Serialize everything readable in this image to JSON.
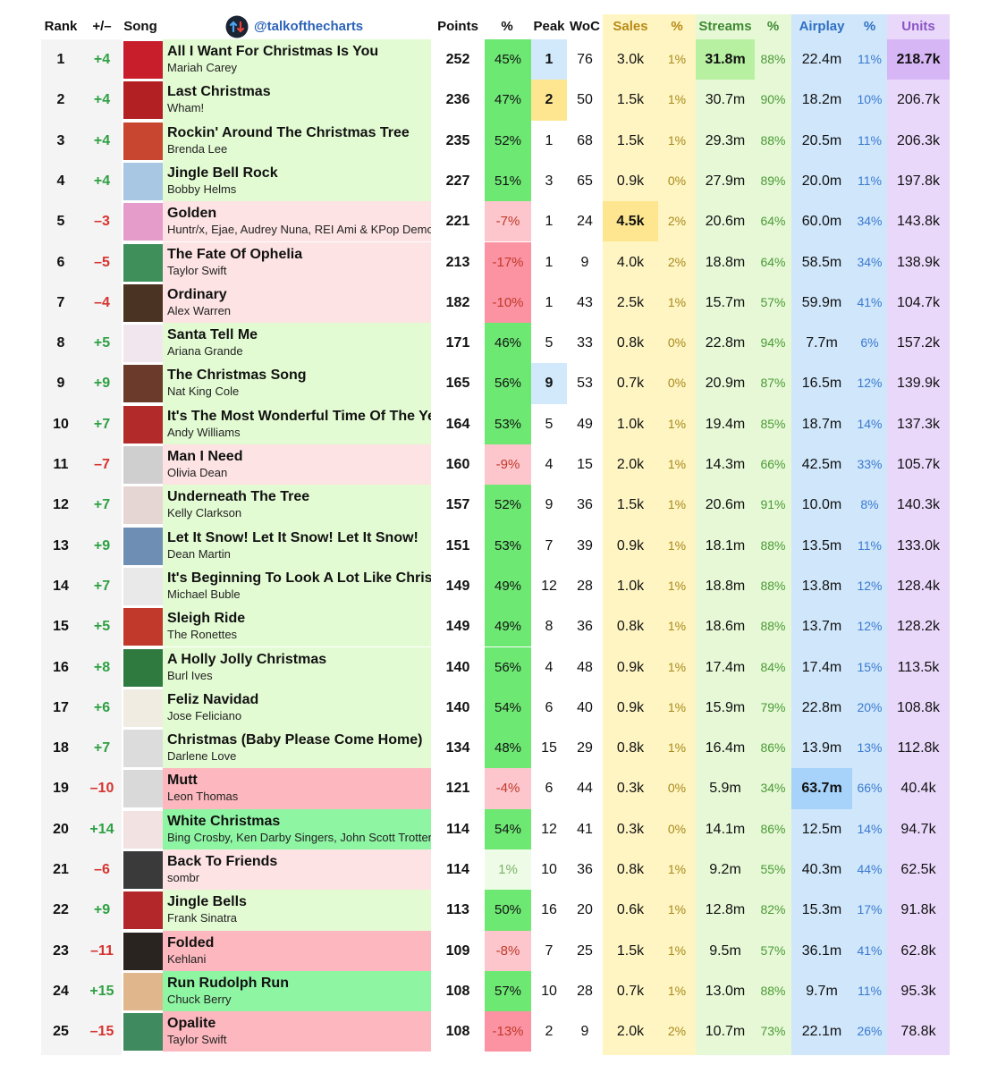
{
  "handle": "@talkofthecharts",
  "headers": {
    "rank": "Rank",
    "change": "+/–",
    "song": "Song",
    "points": "Points",
    "points_pct": "%",
    "peak": "Peak",
    "woc": "WoC",
    "sales": "Sales",
    "sales_pct": "%",
    "streams": "Streams",
    "streams_pct": "%",
    "airplay": "Airplay",
    "airplay_pct": "%",
    "units": "Units"
  },
  "colors": {
    "green_row": "#e3fbd3",
    "light_red_row": "#fde3e3",
    "red_row": "#fcb8be",
    "strong_green_row": "#8ef5a3",
    "pct_pos": "#6de873",
    "pct_neg_light": "#fcc6cc",
    "pct_neg": "#fb93a2",
    "pct_low": "#eefbe6",
    "sales_col": "#fff5c3",
    "streams_col": "#e6f8d6",
    "airplay_col": "#cfe6fb",
    "units_col": "#ead8fb",
    "change_up": "#2ea043",
    "change_down": "#d6332f",
    "sales_pct_text": "#a68a1c",
    "streams_pct_text": "#4a9a36",
    "airplay_pct_text": "#3a7ad0",
    "handle": "#2b63b8"
  },
  "rows": [
    {
      "rank": "1",
      "change": "+4",
      "title": "All I Want For Christmas Is You",
      "artist": "Mariah Carey",
      "points": "252",
      "pct": "45%",
      "peak": "1",
      "woc": "76",
      "sales": "3.0k",
      "sales_pct": "1%",
      "streams": "31.8m",
      "streams_pct": "88%",
      "airplay": "22.4m",
      "airplay_pct": "11%",
      "units": "218.7k",
      "art": "#c81d2a",
      "bg": "green",
      "pct_style": "pos",
      "peak_hl": "#d2e9fb",
      "hl": "streams,units"
    },
    {
      "rank": "2",
      "change": "+4",
      "title": "Last Christmas",
      "artist": "Wham!",
      "points": "236",
      "pct": "47%",
      "peak": "2",
      "woc": "50",
      "sales": "1.5k",
      "sales_pct": "1%",
      "streams": "30.7m",
      "streams_pct": "90%",
      "airplay": "18.2m",
      "airplay_pct": "10%",
      "units": "206.7k",
      "art": "#b32024",
      "bg": "green",
      "pct_style": "pos",
      "peak_hl": "#fde68f",
      "hl": ""
    },
    {
      "rank": "3",
      "change": "+4",
      "title": "Rockin' Around The Christmas Tree",
      "artist": "Brenda Lee",
      "points": "235",
      "pct": "52%",
      "peak": "1",
      "woc": "68",
      "sales": "1.5k",
      "sales_pct": "1%",
      "streams": "29.3m",
      "streams_pct": "88%",
      "airplay": "20.5m",
      "airplay_pct": "11%",
      "units": "206.3k",
      "art": "#c8452f",
      "bg": "green",
      "pct_style": "pos",
      "peak_hl": "",
      "hl": ""
    },
    {
      "rank": "4",
      "change": "+4",
      "title": "Jingle Bell Rock",
      "artist": "Bobby Helms",
      "points": "227",
      "pct": "51%",
      "peak": "3",
      "woc": "65",
      "sales": "0.9k",
      "sales_pct": "0%",
      "streams": "27.9m",
      "streams_pct": "89%",
      "airplay": "20.0m",
      "airplay_pct": "11%",
      "units": "197.8k",
      "art": "#a7c7e3",
      "bg": "green",
      "pct_style": "pos",
      "peak_hl": "",
      "hl": ""
    },
    {
      "rank": "5",
      "change": "–3",
      "title": "Golden",
      "artist": "Huntr/x, Ejae, Audrey Nuna, REI Ami & KPop Demon Hunters",
      "points": "221",
      "pct": "-7%",
      "peak": "1",
      "woc": "24",
      "sales": "4.5k",
      "sales_pct": "2%",
      "streams": "20.6m",
      "streams_pct": "64%",
      "airplay": "60.0m",
      "airplay_pct": "34%",
      "units": "143.8k",
      "art": "#e59ccb",
      "bg": "light_red",
      "pct_style": "neg_light",
      "peak_hl": "",
      "hl": "sales"
    },
    {
      "rank": "6",
      "change": "–5",
      "title": "The Fate Of Ophelia",
      "artist": "Taylor Swift",
      "points": "213",
      "pct": "-17%",
      "peak": "1",
      "woc": "9",
      "sales": "4.0k",
      "sales_pct": "2%",
      "streams": "18.8m",
      "streams_pct": "64%",
      "airplay": "58.5m",
      "airplay_pct": "34%",
      "units": "138.9k",
      "art": "#3e8f5a",
      "bg": "light_red",
      "pct_style": "neg",
      "peak_hl": "",
      "hl": ""
    },
    {
      "rank": "7",
      "change": "–4",
      "title": "Ordinary",
      "artist": "Alex Warren",
      "points": "182",
      "pct": "-10%",
      "peak": "1",
      "woc": "43",
      "sales": "2.5k",
      "sales_pct": "1%",
      "streams": "15.7m",
      "streams_pct": "57%",
      "airplay": "59.9m",
      "airplay_pct": "41%",
      "units": "104.7k",
      "art": "#4a3322",
      "bg": "light_red",
      "pct_style": "neg",
      "peak_hl": "",
      "hl": ""
    },
    {
      "rank": "8",
      "change": "+5",
      "title": "Santa Tell Me",
      "artist": "Ariana Grande",
      "points": "171",
      "pct": "46%",
      "peak": "5",
      "woc": "33",
      "sales": "0.8k",
      "sales_pct": "0%",
      "streams": "22.8m",
      "streams_pct": "94%",
      "airplay": "7.7m",
      "airplay_pct": "6%",
      "units": "157.2k",
      "art": "#f2e6ee",
      "bg": "green",
      "pct_style": "pos",
      "peak_hl": "",
      "hl": ""
    },
    {
      "rank": "9",
      "change": "+9",
      "title": "The Christmas Song",
      "artist": "Nat King Cole",
      "points": "165",
      "pct": "56%",
      "peak": "9",
      "woc": "53",
      "sales": "0.7k",
      "sales_pct": "0%",
      "streams": "20.9m",
      "streams_pct": "87%",
      "airplay": "16.5m",
      "airplay_pct": "12%",
      "units": "139.9k",
      "art": "#6b3a2a",
      "bg": "green",
      "pct_style": "pos",
      "peak_hl": "#d2e9fb",
      "hl": ""
    },
    {
      "rank": "10",
      "change": "+7",
      "title": "It's The Most Wonderful Time Of The Year",
      "artist": "Andy Williams",
      "points": "164",
      "pct": "53%",
      "peak": "5",
      "woc": "49",
      "sales": "1.0k",
      "sales_pct": "1%",
      "streams": "19.4m",
      "streams_pct": "85%",
      "airplay": "18.7m",
      "airplay_pct": "14%",
      "units": "137.3k",
      "art": "#b32a2a",
      "bg": "green",
      "pct_style": "pos",
      "peak_hl": "",
      "hl": ""
    },
    {
      "rank": "11",
      "change": "–7",
      "title": "Man I Need",
      "artist": "Olivia Dean",
      "points": "160",
      "pct": "-9%",
      "peak": "4",
      "woc": "15",
      "sales": "2.0k",
      "sales_pct": "1%",
      "streams": "14.3m",
      "streams_pct": "66%",
      "airplay": "42.5m",
      "airplay_pct": "33%",
      "units": "105.7k",
      "art": "#cfcfcf",
      "bg": "light_red",
      "pct_style": "neg_light",
      "peak_hl": "",
      "hl": ""
    },
    {
      "rank": "12",
      "change": "+7",
      "title": "Underneath The Tree",
      "artist": "Kelly Clarkson",
      "points": "157",
      "pct": "52%",
      "peak": "9",
      "woc": "36",
      "sales": "1.5k",
      "sales_pct": "1%",
      "streams": "20.6m",
      "streams_pct": "91%",
      "airplay": "10.0m",
      "airplay_pct": "8%",
      "units": "140.3k",
      "art": "#e6d6d3",
      "bg": "green",
      "pct_style": "pos",
      "peak_hl": "",
      "hl": ""
    },
    {
      "rank": "13",
      "change": "+9",
      "title": "Let It Snow! Let It Snow! Let It Snow!",
      "artist": "Dean Martin",
      "points": "151",
      "pct": "53%",
      "peak": "7",
      "woc": "39",
      "sales": "0.9k",
      "sales_pct": "1%",
      "streams": "18.1m",
      "streams_pct": "88%",
      "airplay": "13.5m",
      "airplay_pct": "11%",
      "units": "133.0k",
      "art": "#6e8fb3",
      "bg": "green",
      "pct_style": "pos",
      "peak_hl": "",
      "hl": ""
    },
    {
      "rank": "14",
      "change": "+7",
      "title": "It's Beginning To Look A Lot Like Christmas",
      "artist": "Michael Buble",
      "points": "149",
      "pct": "49%",
      "peak": "12",
      "woc": "28",
      "sales": "1.0k",
      "sales_pct": "1%",
      "streams": "18.8m",
      "streams_pct": "88%",
      "airplay": "13.8m",
      "airplay_pct": "12%",
      "units": "128.4k",
      "art": "#e9e9e9",
      "bg": "green",
      "pct_style": "pos",
      "peak_hl": "",
      "hl": ""
    },
    {
      "rank": "15",
      "change": "+5",
      "title": "Sleigh Ride",
      "artist": "The Ronettes",
      "points": "149",
      "pct": "49%",
      "peak": "8",
      "woc": "36",
      "sales": "0.8k",
      "sales_pct": "1%",
      "streams": "18.6m",
      "streams_pct": "88%",
      "airplay": "13.7m",
      "airplay_pct": "12%",
      "units": "128.2k",
      "art": "#c0392b",
      "bg": "green",
      "pct_style": "pos",
      "peak_hl": "",
      "hl": ""
    },
    {
      "rank": "16",
      "change": "+8",
      "title": "A Holly Jolly Christmas",
      "artist": "Burl Ives",
      "points": "140",
      "pct": "56%",
      "peak": "4",
      "woc": "48",
      "sales": "0.9k",
      "sales_pct": "1%",
      "streams": "17.4m",
      "streams_pct": "84%",
      "airplay": "17.4m",
      "airplay_pct": "15%",
      "units": "113.5k",
      "art": "#2f7a3f",
      "bg": "green",
      "pct_style": "pos",
      "peak_hl": "",
      "hl": ""
    },
    {
      "rank": "17",
      "change": "+6",
      "title": "Feliz Navidad",
      "artist": "Jose Feliciano",
      "points": "140",
      "pct": "54%",
      "peak": "6",
      "woc": "40",
      "sales": "0.9k",
      "sales_pct": "1%",
      "streams": "15.9m",
      "streams_pct": "79%",
      "airplay": "22.8m",
      "airplay_pct": "20%",
      "units": "108.8k",
      "art": "#f1ece2",
      "bg": "green",
      "pct_style": "pos",
      "peak_hl": "",
      "hl": ""
    },
    {
      "rank": "18",
      "change": "+7",
      "title": "Christmas (Baby Please Come Home)",
      "artist": "Darlene Love",
      "points": "134",
      "pct": "48%",
      "peak": "15",
      "woc": "29",
      "sales": "0.8k",
      "sales_pct": "1%",
      "streams": "16.4m",
      "streams_pct": "86%",
      "airplay": "13.9m",
      "airplay_pct": "13%",
      "units": "112.8k",
      "art": "#dcdcdc",
      "bg": "green",
      "pct_style": "pos",
      "peak_hl": "",
      "hl": ""
    },
    {
      "rank": "19",
      "change": "–10",
      "title": "Mutt",
      "artist": "Leon Thomas",
      "points": "121",
      "pct": "-4%",
      "peak": "6",
      "woc": "44",
      "sales": "0.3k",
      "sales_pct": "0%",
      "streams": "5.9m",
      "streams_pct": "34%",
      "airplay": "63.7m",
      "airplay_pct": "66%",
      "units": "40.4k",
      "art": "#d9d9d9",
      "bg": "red",
      "pct_style": "neg_light",
      "peak_hl": "",
      "hl": "airplay"
    },
    {
      "rank": "20",
      "change": "+14",
      "title": "White Christmas",
      "artist": "Bing Crosby, Ken Darby Singers, John Scott Trotter & His Orchestra",
      "points": "114",
      "pct": "54%",
      "peak": "12",
      "woc": "41",
      "sales": "0.3k",
      "sales_pct": "0%",
      "streams": "14.1m",
      "streams_pct": "86%",
      "airplay": "12.5m",
      "airplay_pct": "14%",
      "units": "94.7k",
      "art": "#f3e2e2",
      "bg": "strong_green",
      "pct_style": "pos",
      "peak_hl": "",
      "hl": ""
    },
    {
      "rank": "21",
      "change": "–6",
      "title": "Back To Friends",
      "artist": "sombr",
      "points": "114",
      "pct": "1%",
      "peak": "10",
      "woc": "36",
      "sales": "0.8k",
      "sales_pct": "1%",
      "streams": "9.2m",
      "streams_pct": "55%",
      "airplay": "40.3m",
      "airplay_pct": "44%",
      "units": "62.5k",
      "art": "#3a3a3a",
      "bg": "light_red",
      "pct_style": "low",
      "peak_hl": "",
      "hl": ""
    },
    {
      "rank": "22",
      "change": "+9",
      "title": "Jingle Bells",
      "artist": "Frank Sinatra",
      "points": "113",
      "pct": "50%",
      "peak": "16",
      "woc": "20",
      "sales": "0.6k",
      "sales_pct": "1%",
      "streams": "12.8m",
      "streams_pct": "82%",
      "airplay": "15.3m",
      "airplay_pct": "17%",
      "units": "91.8k",
      "art": "#b3262a",
      "bg": "green",
      "pct_style": "pos",
      "peak_hl": "",
      "hl": ""
    },
    {
      "rank": "23",
      "change": "–11",
      "title": "Folded",
      "artist": "Kehlani",
      "points": "109",
      "pct": "-8%",
      "peak": "7",
      "woc": "25",
      "sales": "1.5k",
      "sales_pct": "1%",
      "streams": "9.5m",
      "streams_pct": "57%",
      "airplay": "36.1m",
      "airplay_pct": "41%",
      "units": "62.8k",
      "art": "#2a2420",
      "bg": "red",
      "pct_style": "neg_light",
      "peak_hl": "",
      "hl": ""
    },
    {
      "rank": "24",
      "change": "+15",
      "title": "Run Rudolph Run",
      "artist": "Chuck Berry",
      "points": "108",
      "pct": "57%",
      "peak": "10",
      "woc": "28",
      "sales": "0.7k",
      "sales_pct": "1%",
      "streams": "13.0m",
      "streams_pct": "88%",
      "airplay": "9.7m",
      "airplay_pct": "11%",
      "units": "95.3k",
      "art": "#e0b78c",
      "bg": "strong_green",
      "pct_style": "pos",
      "peak_hl": "",
      "hl": ""
    },
    {
      "rank": "25",
      "change": "–15",
      "title": "Opalite",
      "artist": "Taylor Swift",
      "points": "108",
      "pct": "-13%",
      "peak": "2",
      "woc": "9",
      "sales": "2.0k",
      "sales_pct": "2%",
      "streams": "10.7m",
      "streams_pct": "73%",
      "airplay": "22.1m",
      "airplay_pct": "26%",
      "units": "78.8k",
      "art": "#3f8a5e",
      "bg": "red",
      "pct_style": "neg",
      "peak_hl": "",
      "hl": ""
    }
  ]
}
